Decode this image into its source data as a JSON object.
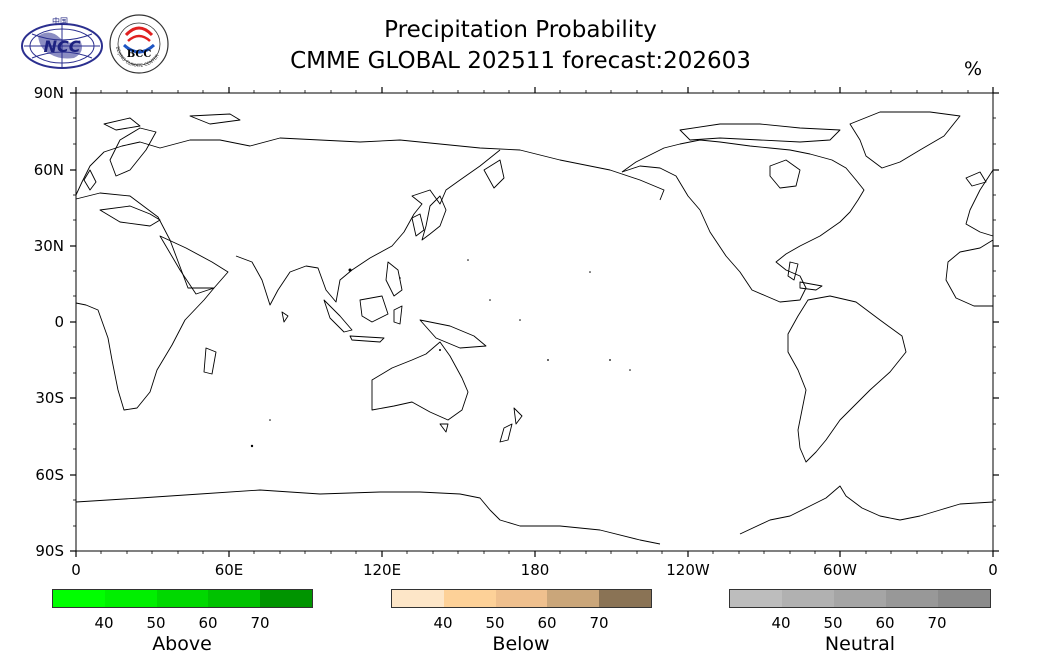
{
  "title": {
    "line1": "Precipitation Probability",
    "line2": "CMME GLOBAL 202511 forecast:202603"
  },
  "unit": "%",
  "logos": {
    "ncc": {
      "text": "NCC",
      "chinese": "中国"
    },
    "bcc": {
      "text": "BCC",
      "ring_text": "BEIJING CLIMATE CENTER"
    }
  },
  "map": {
    "lat_labels": [
      "90N",
      "60N",
      "30N",
      "0",
      "30S",
      "60S",
      "90S"
    ],
    "lon_labels": [
      "0",
      "60E",
      "120E",
      "180",
      "120W",
      "60W",
      "0"
    ],
    "projection": "cylindrical, centered 180",
    "land_color": "#ffffff",
    "coast_color": "#000000"
  },
  "colorbars": [
    {
      "name": "Above",
      "ticks": [
        "40",
        "50",
        "60",
        "70"
      ],
      "colors": [
        "#00ff00",
        "#00ef00",
        "#00d800",
        "#00c200",
        "#009400"
      ]
    },
    {
      "name": "Below",
      "ticks": [
        "40",
        "50",
        "60",
        "70"
      ],
      "colors": [
        "#fde6c8",
        "#fdd198",
        "#efc08e",
        "#caa67a",
        "#8a7355"
      ]
    },
    {
      "name": "Neutral",
      "ticks": [
        "40",
        "50",
        "60",
        "70"
      ],
      "colors": [
        "#bdbdbd",
        "#b1b1b1",
        "#a5a5a5",
        "#989898",
        "#8b8b8b"
      ]
    }
  ]
}
